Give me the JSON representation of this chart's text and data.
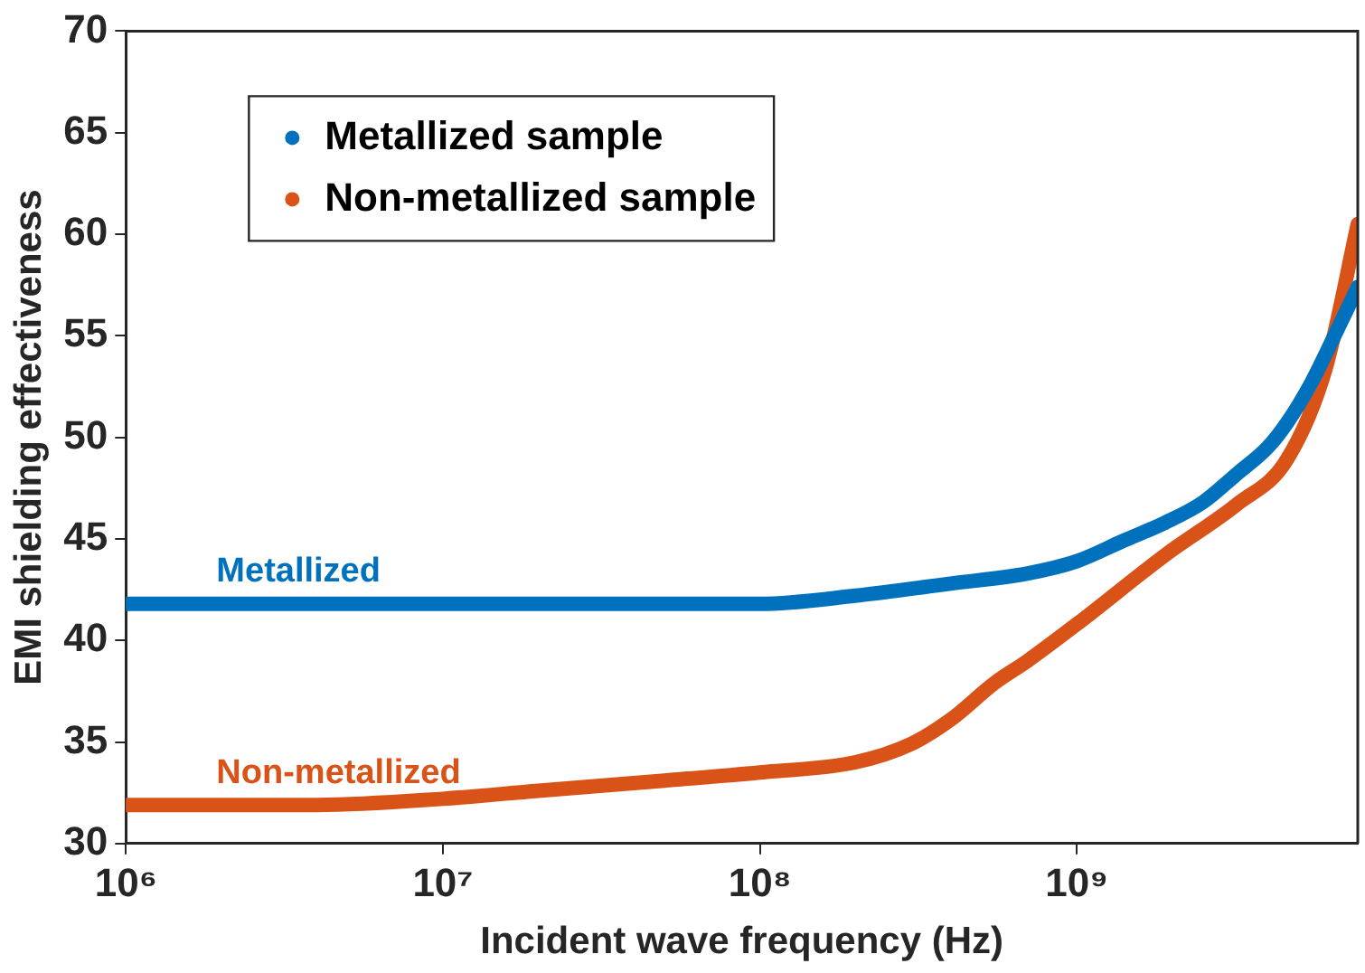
{
  "chart_data": {
    "type": "line",
    "xlabel": "Incident wave frequency (Hz)",
    "ylabel": "EMI shielding effectiveness",
    "log": "x",
    "xlim": [
      1000000,
      7700000000
    ],
    "ylim": [
      30,
      70
    ],
    "xticks": [
      {
        "value": 1000000,
        "label": "10⁶"
      },
      {
        "value": 10000000,
        "label": "10⁷"
      },
      {
        "value": 100000000,
        "label": "10⁸"
      },
      {
        "value": 1000000000,
        "label": "10⁹"
      }
    ],
    "yticks": [
      30,
      35,
      40,
      45,
      50,
      55,
      60,
      65,
      70
    ],
    "legend": "top left",
    "marker": "circle",
    "series": [
      {
        "name": "Metallized sample",
        "color": "#0072bd",
        "x": [
          1000000,
          10000000,
          100000000,
          200000000,
          400000000,
          700000000,
          1000000000,
          1400000000,
          1900000000,
          2500000000,
          3200000000,
          4000000000,
          4600000000,
          5500000000,
          6500000000,
          7700000000
        ],
        "values": [
          41.8,
          41.8,
          41.8,
          42.2,
          42.8,
          43.3,
          43.9,
          44.9,
          45.8,
          46.8,
          48.2,
          49.5,
          50.7,
          52.7,
          55,
          57.4
        ]
      },
      {
        "name": "Non-metallized sample",
        "color": "#d95319",
        "x": [
          1000000,
          4000000,
          10000000,
          20000000,
          50000000,
          100000000,
          200000000,
          300000000,
          400000000,
          550000000,
          700000000,
          1000000000,
          1900000000,
          3200000000,
          4600000000,
          6100000000,
          7700000000
        ],
        "values": [
          31.9,
          31.9,
          32.2,
          32.6,
          33.1,
          33.5,
          34,
          34.9,
          36.1,
          37.9,
          39,
          40.8,
          44.2,
          46.7,
          48.9,
          53.4,
          60.5
        ]
      }
    ],
    "annotations": [
      "Metallized",
      "Non-metallized"
    ]
  }
}
